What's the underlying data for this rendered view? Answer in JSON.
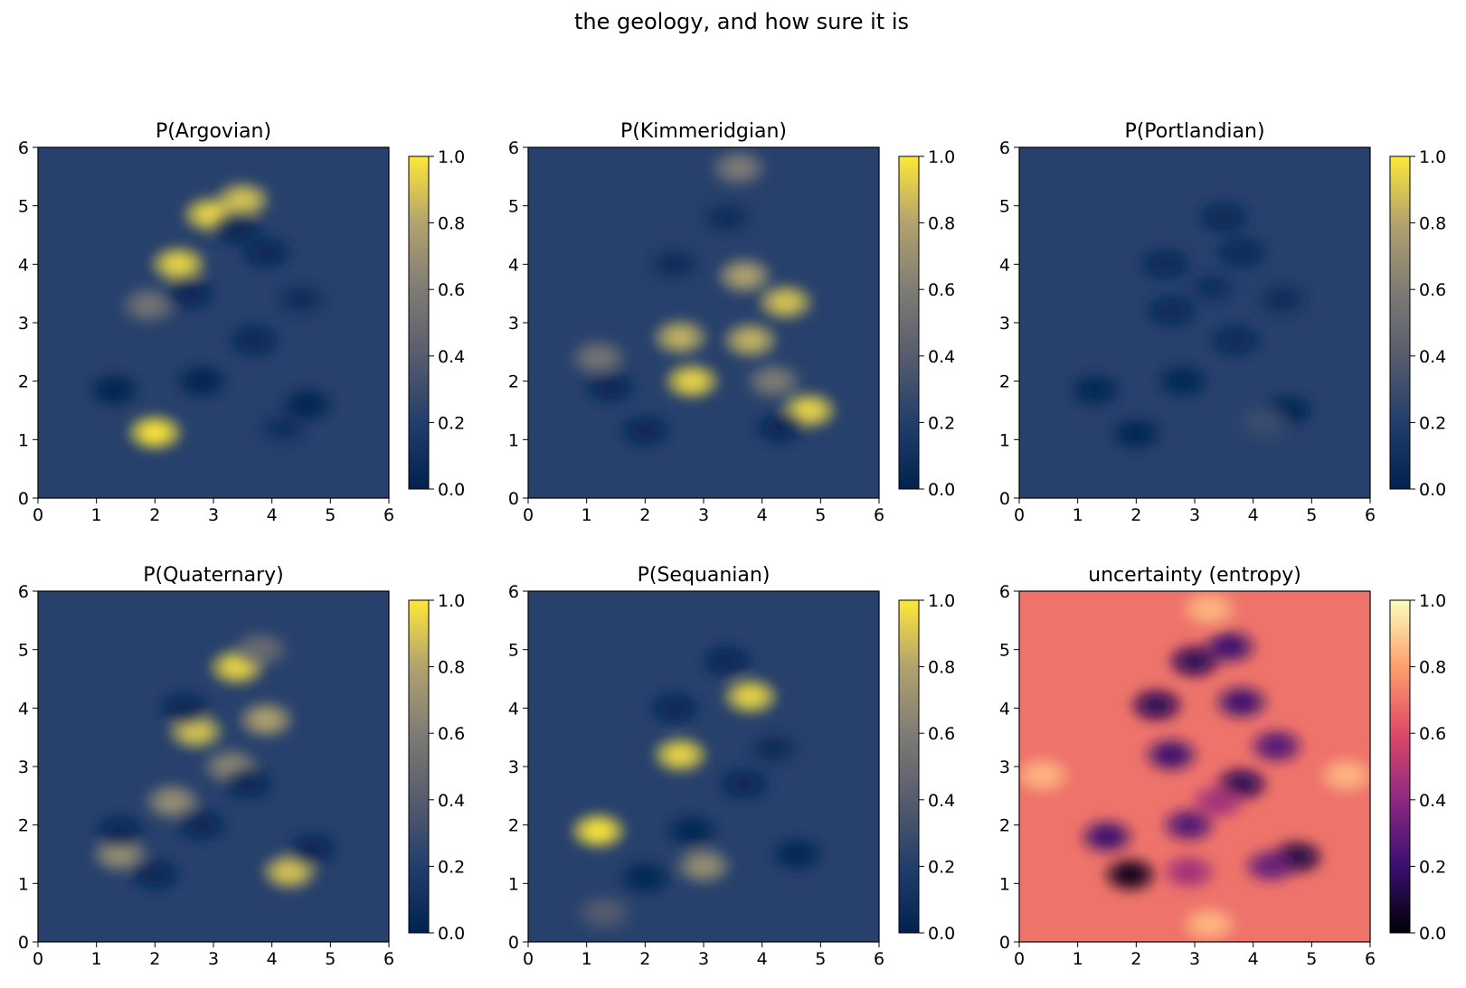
{
  "figure": {
    "title": "the geology, and how sure it is"
  },
  "chart_data": [
    {
      "type": "heatmap",
      "title": "P(Argovian)",
      "colormap": "cividis",
      "xlim": [
        0,
        6
      ],
      "ylim": [
        0,
        6
      ],
      "xticks": [
        "0",
        "1",
        "2",
        "3",
        "4",
        "5",
        "6"
      ],
      "yticks": [
        "0",
        "1",
        "2",
        "3",
        "4",
        "5",
        "6"
      ],
      "colorbar": {
        "range": [
          0.0,
          1.0
        ],
        "ticks": [
          "0.0",
          "0.2",
          "0.4",
          "0.6",
          "0.8",
          "1.0"
        ]
      },
      "background_value": 0.22,
      "blobs": [
        {
          "x": 2.0,
          "y": 1.12,
          "value": 1.0
        },
        {
          "x": 2.4,
          "y": 4.0,
          "value": 0.95
        },
        {
          "x": 2.95,
          "y": 4.85,
          "value": 0.95
        },
        {
          "x": 3.5,
          "y": 5.1,
          "value": 0.9
        },
        {
          "x": 1.9,
          "y": 3.3,
          "value": 0.55
        },
        {
          "x": 1.3,
          "y": 1.85,
          "value": 0.02
        },
        {
          "x": 2.8,
          "y": 2.0,
          "value": 0.02
        },
        {
          "x": 4.6,
          "y": 1.6,
          "value": 0.02
        },
        {
          "x": 2.6,
          "y": 3.5,
          "value": 0.05
        },
        {
          "x": 3.9,
          "y": 4.2,
          "value": 0.05
        },
        {
          "x": 3.7,
          "y": 2.7,
          "value": 0.05
        },
        {
          "x": 4.2,
          "y": 1.2,
          "value": 0.1
        },
        {
          "x": 3.4,
          "y": 4.6,
          "value": 0.05
        },
        {
          "x": 4.5,
          "y": 3.4,
          "value": 0.08
        }
      ]
    },
    {
      "type": "heatmap",
      "title": "P(Kimmeridgian)",
      "colormap": "cividis",
      "xlim": [
        0,
        6
      ],
      "ylim": [
        0,
        6
      ],
      "xticks": [
        "0",
        "1",
        "2",
        "3",
        "4",
        "5",
        "6"
      ],
      "yticks": [
        "0",
        "1",
        "2",
        "3",
        "4",
        "5",
        "6"
      ],
      "colorbar": {
        "range": [
          0.0,
          1.0
        ],
        "ticks": [
          "0.0",
          "0.2",
          "0.4",
          "0.6",
          "0.8",
          "1.0"
        ]
      },
      "background_value": 0.22,
      "blobs": [
        {
          "x": 2.8,
          "y": 2.0,
          "value": 0.95
        },
        {
          "x": 4.8,
          "y": 1.5,
          "value": 0.95
        },
        {
          "x": 4.4,
          "y": 3.35,
          "value": 0.9
        },
        {
          "x": 3.8,
          "y": 2.7,
          "value": 0.85
        },
        {
          "x": 2.6,
          "y": 2.75,
          "value": 0.85
        },
        {
          "x": 3.6,
          "y": 5.65,
          "value": 0.6
        },
        {
          "x": 4.2,
          "y": 2.0,
          "value": 0.6
        },
        {
          "x": 3.7,
          "y": 3.8,
          "value": 0.8
        },
        {
          "x": 1.4,
          "y": 1.9,
          "value": 0.05
        },
        {
          "x": 2.0,
          "y": 1.15,
          "value": 0.05
        },
        {
          "x": 1.2,
          "y": 2.4,
          "value": 0.55
        },
        {
          "x": 4.3,
          "y": 1.2,
          "value": 0.05
        },
        {
          "x": 2.5,
          "y": 4.0,
          "value": 0.08
        },
        {
          "x": 3.4,
          "y": 4.8,
          "value": 0.08
        }
      ]
    },
    {
      "type": "heatmap",
      "title": "P(Portlandian)",
      "colormap": "cividis",
      "xlim": [
        0,
        6
      ],
      "ylim": [
        0,
        6
      ],
      "xticks": [
        "0",
        "1",
        "2",
        "3",
        "4",
        "5",
        "6"
      ],
      "yticks": [
        "0",
        "1",
        "2",
        "3",
        "4",
        "5",
        "6"
      ],
      "colorbar": {
        "range": [
          0.0,
          1.0
        ],
        "ticks": [
          "0.0",
          "0.2",
          "0.4",
          "0.6",
          "0.8",
          "1.0"
        ]
      },
      "background_value": 0.22,
      "blobs": [
        {
          "x": 1.3,
          "y": 1.85,
          "value": 0.04
        },
        {
          "x": 2.0,
          "y": 1.1,
          "value": 0.04
        },
        {
          "x": 2.8,
          "y": 2.0,
          "value": 0.04
        },
        {
          "x": 4.6,
          "y": 1.5,
          "value": 0.04
        },
        {
          "x": 2.5,
          "y": 4.0,
          "value": 0.06
        },
        {
          "x": 3.5,
          "y": 4.8,
          "value": 0.06
        },
        {
          "x": 3.8,
          "y": 4.2,
          "value": 0.06
        },
        {
          "x": 2.6,
          "y": 3.2,
          "value": 0.06
        },
        {
          "x": 3.7,
          "y": 2.7,
          "value": 0.06
        },
        {
          "x": 4.2,
          "y": 1.3,
          "value": 0.3
        },
        {
          "x": 4.5,
          "y": 3.4,
          "value": 0.08
        },
        {
          "x": 3.3,
          "y": 3.6,
          "value": 0.1
        }
      ]
    },
    {
      "type": "heatmap",
      "title": "P(Quaternary)",
      "colormap": "cividis",
      "xlim": [
        0,
        6
      ],
      "ylim": [
        0,
        6
      ],
      "xticks": [
        "0",
        "1",
        "2",
        "3",
        "4",
        "5",
        "6"
      ],
      "yticks": [
        "0",
        "1",
        "2",
        "3",
        "4",
        "5",
        "6"
      ],
      "colorbar": {
        "range": [
          0.0,
          1.0
        ],
        "ticks": [
          "0.0",
          "0.2",
          "0.4",
          "0.6",
          "0.8",
          "1.0"
        ]
      },
      "background_value": 0.22,
      "blobs": [
        {
          "x": 3.4,
          "y": 4.7,
          "value": 0.95
        },
        {
          "x": 2.7,
          "y": 3.6,
          "value": 0.9
        },
        {
          "x": 4.3,
          "y": 1.2,
          "value": 0.9
        },
        {
          "x": 3.9,
          "y": 3.8,
          "value": 0.8
        },
        {
          "x": 2.3,
          "y": 2.4,
          "value": 0.7
        },
        {
          "x": 1.4,
          "y": 1.5,
          "value": 0.7
        },
        {
          "x": 3.3,
          "y": 3.0,
          "value": 0.65
        },
        {
          "x": 3.8,
          "y": 5.0,
          "value": 0.5
        },
        {
          "x": 1.4,
          "y": 1.9,
          "value": 0.05
        },
        {
          "x": 2.0,
          "y": 1.15,
          "value": 0.05
        },
        {
          "x": 2.8,
          "y": 2.0,
          "value": 0.05
        },
        {
          "x": 4.7,
          "y": 1.6,
          "value": 0.05
        },
        {
          "x": 2.5,
          "y": 4.0,
          "value": 0.05
        },
        {
          "x": 3.6,
          "y": 2.7,
          "value": 0.05
        }
      ]
    },
    {
      "type": "heatmap",
      "title": "P(Sequanian)",
      "colormap": "cividis",
      "xlim": [
        0,
        6
      ],
      "ylim": [
        0,
        6
      ],
      "xticks": [
        "0",
        "1",
        "2",
        "3",
        "4",
        "5",
        "6"
      ],
      "yticks": [
        "0",
        "1",
        "2",
        "3",
        "4",
        "5",
        "6"
      ],
      "colorbar": {
        "range": [
          0.0,
          1.0
        ],
        "ticks": [
          "0.0",
          "0.2",
          "0.4",
          "0.6",
          "0.8",
          "1.0"
        ]
      },
      "background_value": 0.22,
      "blobs": [
        {
          "x": 1.2,
          "y": 1.9,
          "value": 1.0
        },
        {
          "x": 2.6,
          "y": 3.2,
          "value": 0.95
        },
        {
          "x": 3.8,
          "y": 4.2,
          "value": 0.95
        },
        {
          "x": 3.0,
          "y": 1.3,
          "value": 0.7
        },
        {
          "x": 1.3,
          "y": 0.5,
          "value": 0.4
        },
        {
          "x": 2.0,
          "y": 1.1,
          "value": 0.03
        },
        {
          "x": 2.8,
          "y": 1.9,
          "value": 0.03
        },
        {
          "x": 4.6,
          "y": 1.5,
          "value": 0.04
        },
        {
          "x": 2.5,
          "y": 4.0,
          "value": 0.05
        },
        {
          "x": 3.4,
          "y": 4.8,
          "value": 0.05
        },
        {
          "x": 3.7,
          "y": 2.7,
          "value": 0.05
        },
        {
          "x": 4.2,
          "y": 3.3,
          "value": 0.08
        }
      ]
    },
    {
      "type": "heatmap",
      "title": "uncertainty (entropy)",
      "colormap": "magma",
      "xlim": [
        0,
        6
      ],
      "ylim": [
        0,
        6
      ],
      "xticks": [
        "0",
        "1",
        "2",
        "3",
        "4",
        "5",
        "6"
      ],
      "yticks": [
        "0",
        "1",
        "2",
        "3",
        "4",
        "5",
        "6"
      ],
      "colorbar": {
        "range": [
          0.0,
          1.0
        ],
        "ticks": [
          "0.0",
          "0.2",
          "0.4",
          "0.6",
          "0.8",
          "1.0"
        ]
      },
      "background_value": 0.7,
      "blobs": [
        {
          "x": 3.25,
          "y": 5.7,
          "value": 0.85
        },
        {
          "x": 3.25,
          "y": 0.3,
          "value": 0.85
        },
        {
          "x": 0.4,
          "y": 2.85,
          "value": 0.85
        },
        {
          "x": 5.6,
          "y": 2.85,
          "value": 0.85
        },
        {
          "x": 1.9,
          "y": 1.15,
          "value": 0.05
        },
        {
          "x": 1.5,
          "y": 1.8,
          "value": 0.2
        },
        {
          "x": 4.75,
          "y": 1.45,
          "value": 0.12
        },
        {
          "x": 2.6,
          "y": 3.2,
          "value": 0.2
        },
        {
          "x": 2.35,
          "y": 4.05,
          "value": 0.15
        },
        {
          "x": 3.0,
          "y": 4.8,
          "value": 0.15
        },
        {
          "x": 3.6,
          "y": 5.05,
          "value": 0.2
        },
        {
          "x": 3.8,
          "y": 4.1,
          "value": 0.2
        },
        {
          "x": 3.8,
          "y": 2.7,
          "value": 0.15
        },
        {
          "x": 2.9,
          "y": 2.0,
          "value": 0.25
        },
        {
          "x": 4.4,
          "y": 3.35,
          "value": 0.25
        },
        {
          "x": 3.4,
          "y": 2.4,
          "value": 0.45
        },
        {
          "x": 4.3,
          "y": 1.3,
          "value": 0.3
        },
        {
          "x": 2.9,
          "y": 1.2,
          "value": 0.45
        }
      ]
    }
  ]
}
